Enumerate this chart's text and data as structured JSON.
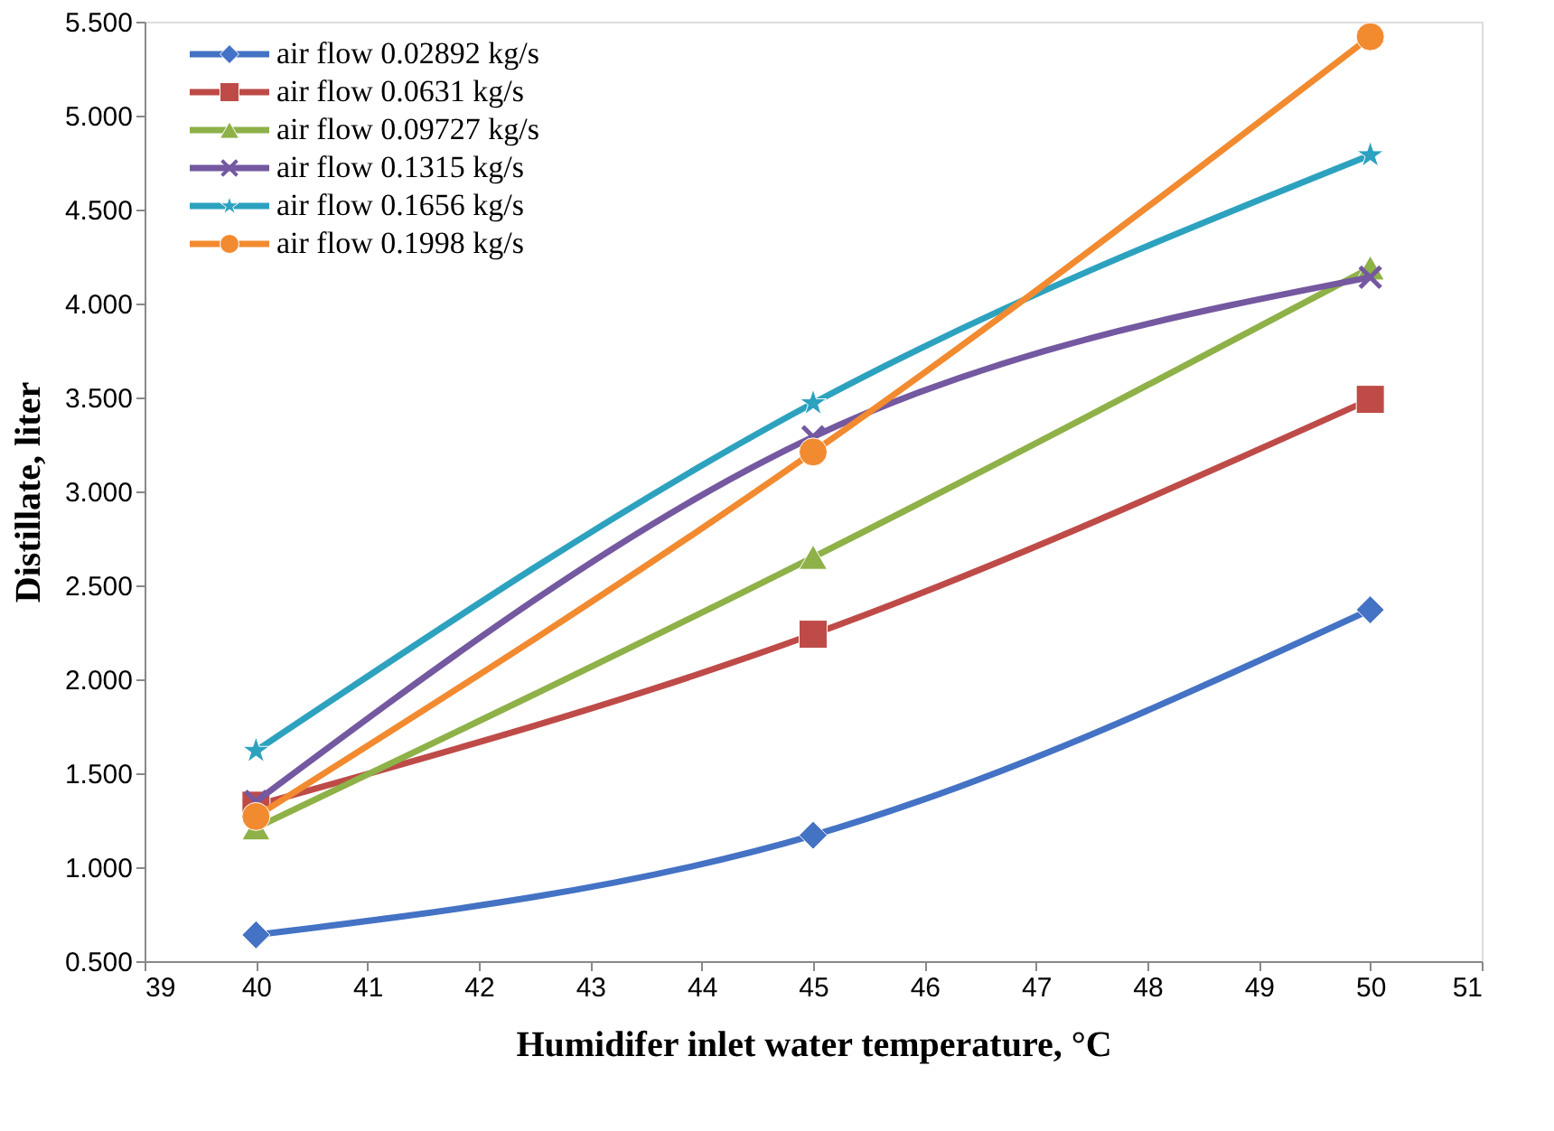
{
  "chart_data": {
    "type": "line",
    "xlabel": "Humidifer inlet water temperature, °C",
    "ylabel": "Distillate, liter",
    "x": [
      40,
      45,
      50
    ],
    "series": [
      {
        "name": "air flow 0.02892 kg/s",
        "color": "#4472c4",
        "marker": "diamond",
        "values": [
          0.64,
          1.17,
          2.37
        ]
      },
      {
        "name": "air flow 0.0631 kg/s",
        "color": "#be4b48",
        "marker": "square",
        "values": [
          1.33,
          2.24,
          3.49
        ]
      },
      {
        "name": "air flow 0.09727 kg/s",
        "color": "#8eb148",
        "marker": "triangle",
        "values": [
          1.21,
          2.65,
          4.19
        ]
      },
      {
        "name": "air flow 0.1315 kg/s",
        "color": "#7458a0",
        "marker": "cross",
        "values": [
          1.35,
          3.29,
          4.14
        ]
      },
      {
        "name": "air flow 0.1656 kg/s",
        "color": "#2da2bf",
        "marker": "star",
        "values": [
          1.62,
          3.47,
          4.79
        ]
      },
      {
        "name": "air flow 0.1998 kg/s",
        "color": "#f28a30",
        "marker": "circle",
        "values": [
          1.27,
          3.21,
          5.42
        ]
      }
    ],
    "xlim": [
      39,
      51
    ],
    "xticks": [
      39,
      40,
      41,
      42,
      43,
      44,
      45,
      46,
      47,
      48,
      49,
      50,
      51
    ],
    "ylim": [
      0.5,
      5.5
    ],
    "yticks": [
      {
        "value": 0.5,
        "label": "0.500"
      },
      {
        "value": 1.0,
        "label": "1.000"
      },
      {
        "value": 1.5,
        "label": "1.500"
      },
      {
        "value": 2.0,
        "label": "2.000"
      },
      {
        "value": 2.5,
        "label": "2.500"
      },
      {
        "value": 3.0,
        "label": "3.000"
      },
      {
        "value": 3.5,
        "label": "3.500"
      },
      {
        "value": 4.0,
        "label": "4.000"
      },
      {
        "value": 4.5,
        "label": "4.500"
      },
      {
        "value": 5.0,
        "label": "5.000"
      },
      {
        "value": 5.5,
        "label": "5.500"
      }
    ],
    "grid": false,
    "legend": "top left",
    "line_style": "solid"
  }
}
